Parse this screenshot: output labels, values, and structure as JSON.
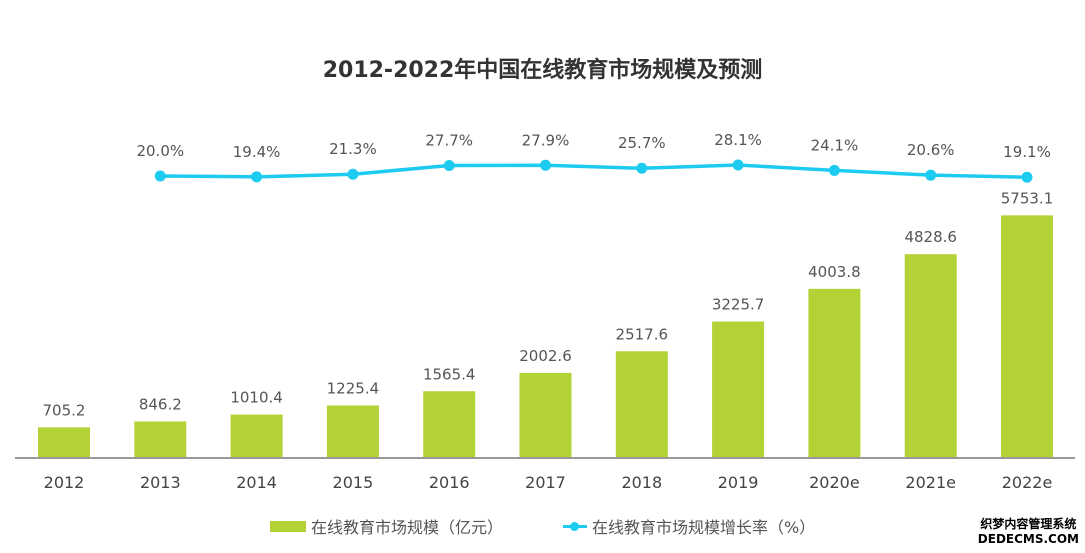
{
  "chart_data": {
    "type": "bar+line",
    "title": "2012-2022年中国在线教育市场规模及预测",
    "categories": [
      "2012",
      "2013",
      "2014",
      "2015",
      "2016",
      "2017",
      "2018",
      "2019",
      "2020e",
      "2021e",
      "2022e"
    ],
    "series": [
      {
        "name": "在线教育市场规模（亿元）",
        "type": "bar",
        "color": "#b2d235",
        "values": [
          705.2,
          846.2,
          1010.4,
          1225.4,
          1565.4,
          2002.6,
          2517.6,
          3225.7,
          4003.8,
          4828.6,
          5753.1
        ],
        "labels": [
          "705.2",
          "846.2",
          "1010.4",
          "1225.4",
          "1565.4",
          "2002.6",
          "2517.6",
          "3225.7",
          "4003.8",
          "4828.6",
          "5753.1"
        ]
      },
      {
        "name": "在线教育市场规模增长率（%）",
        "type": "line",
        "color": "#1ecbf0",
        "values": [
          null,
          20.0,
          19.4,
          21.3,
          27.7,
          27.9,
          25.7,
          28.1,
          24.1,
          20.6,
          19.1
        ],
        "labels": [
          "",
          "20.0%",
          "19.4%",
          "21.3%",
          "27.7%",
          "27.9%",
          "25.7%",
          "28.1%",
          "24.1%",
          "20.6%",
          "19.1%"
        ]
      }
    ],
    "legend": "bottom",
    "grid": false
  },
  "legend": {
    "bar": "在线教育市场规模（亿元）",
    "line": "在线教育市场规模增长率（%）"
  },
  "watermark": {
    "line1": "织梦内容管理系统",
    "line2": "DEDECMS.COM"
  }
}
